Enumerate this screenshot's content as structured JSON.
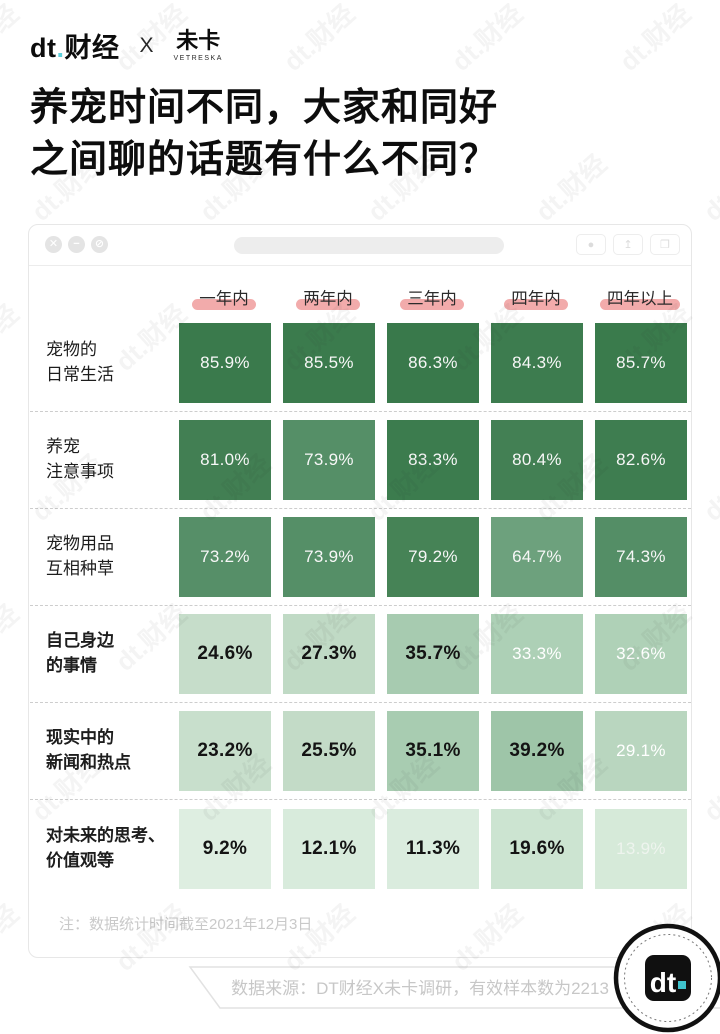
{
  "header": {
    "brand_dt_word": "dt",
    "brand_dt_dot": ".",
    "brand_dt_name": "财经",
    "separator": "X",
    "brand_right_name": "未卡",
    "brand_right_sub": "VETRESKA"
  },
  "title": {
    "text": "养宠时间不同，大家和同好\n之间聊的话题有什么不同？"
  },
  "window": {
    "left_controls": [
      {
        "name": "close-icon",
        "glyph": "✕"
      },
      {
        "name": "minimize-icon",
        "glyph": "−"
      },
      {
        "name": "block-icon",
        "glyph": "⊘"
      }
    ],
    "right_controls": [
      {
        "name": "record-button",
        "icon": "record-icon",
        "glyph": "●"
      },
      {
        "name": "share-button",
        "icon": "share-icon",
        "glyph": "↥"
      },
      {
        "name": "copy-button",
        "icon": "copy-icon",
        "glyph": "❐"
      }
    ]
  },
  "chart_data": {
    "type": "heatmap",
    "title": "养宠时间不同，大家和同好之间聊的话题有什么不同？",
    "unit": "%",
    "color_scale": "green intensity proportional to value",
    "columns": [
      "一年内",
      "两年内",
      "三年内",
      "四年内",
      "四年以上"
    ],
    "rows": [
      {
        "label_lines": "宠物的\n日常生活",
        "label_bold": false,
        "cells": [
          {
            "value": 85.9,
            "display": "85.9%",
            "bg": "#3a7a4c",
            "fg": "#f7f7f7",
            "bold": false
          },
          {
            "value": 85.5,
            "display": "85.5%",
            "bg": "#3b7b4d",
            "fg": "#f7f7f7",
            "bold": false
          },
          {
            "value": 86.3,
            "display": "86.3%",
            "bg": "#39794b",
            "fg": "#f7f7f7",
            "bold": false
          },
          {
            "value": 84.3,
            "display": "84.3%",
            "bg": "#3d7c4f",
            "fg": "#f7f7f7",
            "bold": false
          },
          {
            "value": 85.7,
            "display": "85.7%",
            "bg": "#3a7b4c",
            "fg": "#f7f7f7",
            "bold": false
          }
        ]
      },
      {
        "label_lines": "养宠\n注意事项",
        "label_bold": false,
        "cells": [
          {
            "value": 81.0,
            "display": "81.0%",
            "bg": "#427f53",
            "fg": "#f7f7f7",
            "bold": false
          },
          {
            "value": 73.9,
            "display": "73.9%",
            "bg": "#558f67",
            "fg": "#f7f7f7",
            "bold": false
          },
          {
            "value": 83.3,
            "display": "83.3%",
            "bg": "#3c7c4e",
            "fg": "#f7f7f7",
            "bold": false
          },
          {
            "value": 80.4,
            "display": "80.4%",
            "bg": "#438054",
            "fg": "#f7f7f7",
            "bold": false
          },
          {
            "value": 82.6,
            "display": "82.6%",
            "bg": "#3e7d50",
            "fg": "#f7f7f7",
            "bold": false
          }
        ]
      },
      {
        "label_lines": "宠物用品\n互相种草",
        "label_bold": false,
        "cells": [
          {
            "value": 73.2,
            "display": "73.2%",
            "bg": "#568f68",
            "fg": "#f7f7f7",
            "bold": false
          },
          {
            "value": 73.9,
            "display": "73.9%",
            "bg": "#558f67",
            "fg": "#f7f7f7",
            "bold": false
          },
          {
            "value": 79.2,
            "display": "79.2%",
            "bg": "#468356",
            "fg": "#f7f7f7",
            "bold": false
          },
          {
            "value": 64.7,
            "display": "64.7%",
            "bg": "#6da17d",
            "fg": "#f7f7f7",
            "bold": false
          },
          {
            "value": 74.3,
            "display": "74.3%",
            "bg": "#548e66",
            "fg": "#f7f7f7",
            "bold": false
          }
        ]
      },
      {
        "label_lines": "自己身边\n的事情",
        "label_bold": true,
        "cells": [
          {
            "value": 24.6,
            "display": "24.6%",
            "bg": "#c6ddca",
            "fg": "#141414",
            "bold": true
          },
          {
            "value": 27.3,
            "display": "27.3%",
            "bg": "#c0dac5",
            "fg": "#141414",
            "bold": true
          },
          {
            "value": 35.7,
            "display": "35.7%",
            "bg": "#a7cbb0",
            "fg": "#141414",
            "bold": true
          },
          {
            "value": 33.3,
            "display": "33.3%",
            "bg": "#add0b6",
            "fg": "#ffffff",
            "bold": false
          },
          {
            "value": 32.6,
            "display": "32.6%",
            "bg": "#afd1b7",
            "fg": "#ffffff",
            "bold": false
          }
        ]
      },
      {
        "label_lines": "现实中的\n新闻和热点",
        "label_bold": true,
        "cells": [
          {
            "value": 23.2,
            "display": "23.2%",
            "bg": "#c8dfcc",
            "fg": "#141414",
            "bold": true
          },
          {
            "value": 25.5,
            "display": "25.5%",
            "bg": "#c3dbc7",
            "fg": "#141414",
            "bold": true
          },
          {
            "value": 35.1,
            "display": "35.1%",
            "bg": "#a8ccb1",
            "fg": "#141414",
            "bold": true
          },
          {
            "value": 39.2,
            "display": "39.2%",
            "bg": "#9ec5a8",
            "fg": "#141414",
            "bold": true
          },
          {
            "value": 29.1,
            "display": "29.1%",
            "bg": "#b9d6bf",
            "fg": "#ffffff",
            "bold": false
          }
        ]
      },
      {
        "label_lines": "对未来的思考、\n价值观等",
        "label_bold": true,
        "cells": [
          {
            "value": 9.2,
            "display": "9.2%",
            "bg": "#deeee1",
            "fg": "#141414",
            "bold": true
          },
          {
            "value": 12.1,
            "display": "12.1%",
            "bg": "#d8ebdc",
            "fg": "#141414",
            "bold": true
          },
          {
            "value": 11.3,
            "display": "11.3%",
            "bg": "#daecde",
            "fg": "#141414",
            "bold": true
          },
          {
            "value": 19.6,
            "display": "19.6%",
            "bg": "#cce4d1",
            "fg": "#141414",
            "bold": true
          },
          {
            "value": 13.9,
            "display": "13.9%",
            "bg": "#d6ead9",
            "fg": "#eef4ee",
            "bold": false
          }
        ]
      }
    ]
  },
  "note": {
    "text": "注：数据统计时间截至2021年12月3日"
  },
  "source": {
    "text": "数据来源：DT财经X未卡调研，有效样本数为2213"
  },
  "badge": {
    "word": "dt",
    "dot": "."
  },
  "watermark": {
    "text": "dt.财经"
  },
  "colors": {
    "pink_highlight": "#f2abab",
    "cyan_accent": "#5fd0dc",
    "badge_dot": "#3fc3cd",
    "dark_green": "#3a7a4c",
    "note_gray": "#c9c9c9"
  }
}
